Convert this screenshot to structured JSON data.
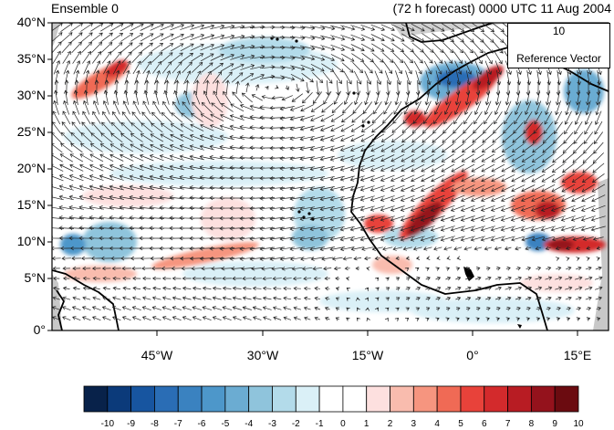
{
  "title_left": "Ensemble 0",
  "title_right": "(72 h forecast) 0000 UTC 11 Aug 2004",
  "y_labels": [
    "40°N",
    "35°N",
    "30°N",
    "25°N",
    "20°N",
    "15°N",
    "10°N",
    "5°N",
    "0°"
  ],
  "x_labels": [
    "45°W",
    "30°W",
    "15°W",
    "0°",
    "15°E"
  ],
  "reference_vector": {
    "value": "10",
    "label": "Reference Vector"
  },
  "colorbar": {
    "labels": [
      "-10",
      "-9",
      "-8",
      "-7",
      "-6",
      "-5",
      "-4",
      "-3",
      "-2",
      "-1",
      "0",
      "1",
      "2",
      "3",
      "4",
      "5",
      "6",
      "7",
      "8",
      "9",
      "10"
    ],
    "colors": [
      "#08224a",
      "#0b3a7a",
      "#1755a0",
      "#2a6db5",
      "#3a82c0",
      "#4d97ca",
      "#6bacd2",
      "#8fc4dc",
      "#b3dbea",
      "#daf0f7",
      "#ffffff",
      "#ffffff",
      "#fde0df",
      "#f9bcae",
      "#f6957f",
      "#f06a55",
      "#e8423a",
      "#d32a2c",
      "#b81c23",
      "#94121c",
      "#6b0b10"
    ]
  },
  "colors": {
    "land_border": "#000000",
    "out_of_domain": "#c8c8c8",
    "vector": "#222222"
  }
}
